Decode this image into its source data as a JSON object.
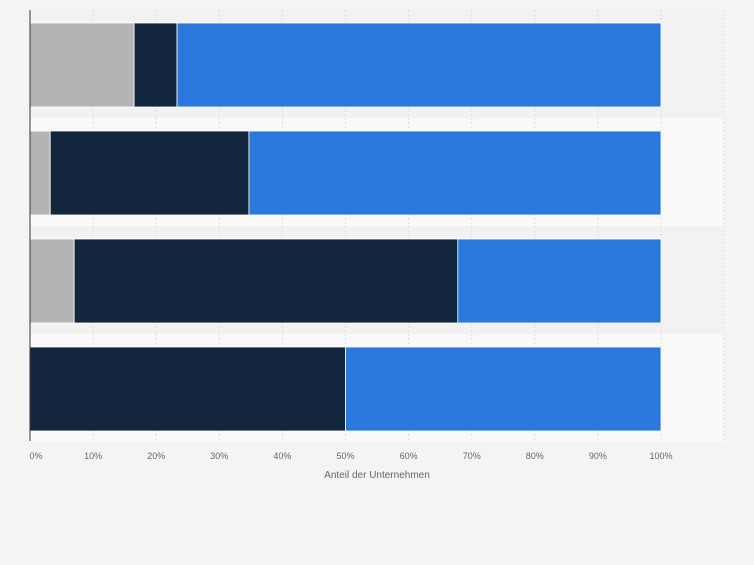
{
  "chart_data": {
    "type": "bar",
    "orientation": "horizontal",
    "stacked": true,
    "categories": [
      "",
      "",
      "",
      ""
    ],
    "series": [
      {
        "values": [
          16.5,
          3.2,
          7.0,
          0.0
        ],
        "color": "#b4b4b4"
      },
      {
        "values": [
          6.8,
          31.5,
          60.8,
          50.0
        ],
        "color": "#12263d"
      },
      {
        "values": [
          76.7,
          65.3,
          32.2,
          50.0
        ],
        "color": "#2a78dc"
      }
    ],
    "xlim": [
      0,
      110
    ],
    "x_ticks": [
      "0%",
      "10%",
      "20%",
      "30%",
      "40%",
      "50%",
      "60%",
      "70%",
      "80%",
      "90%",
      "100%"
    ],
    "xlabel": "Anteil der Unternehmen",
    "ylabel": "",
    "grid": true,
    "legend": "none"
  }
}
